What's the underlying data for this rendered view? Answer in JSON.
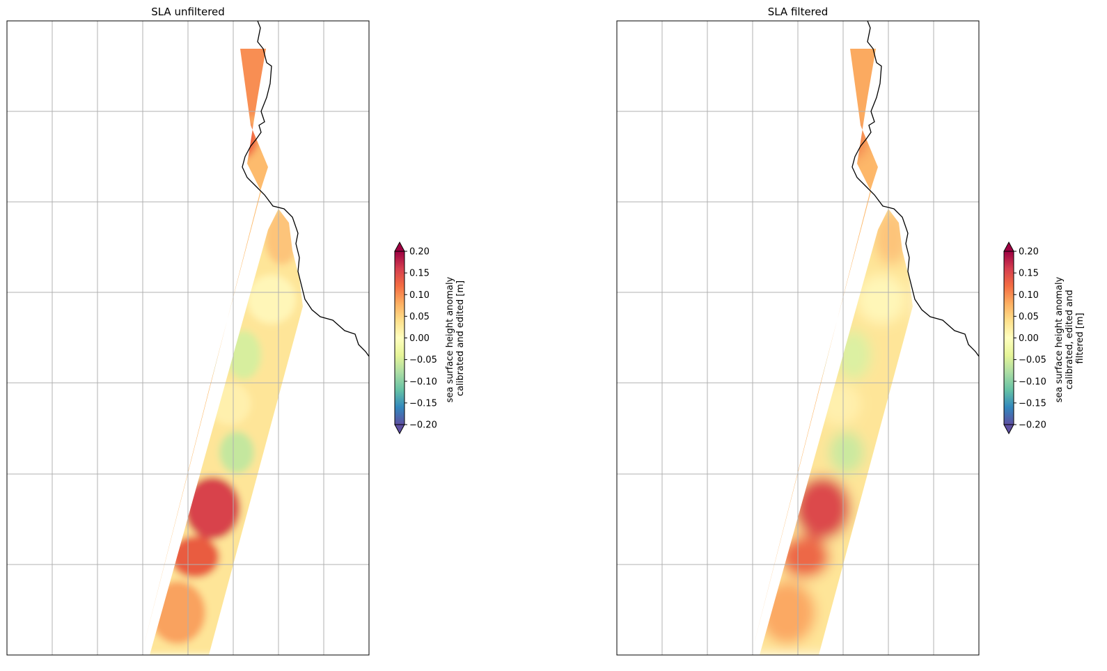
{
  "chart_data": [
    {
      "type": "heatmap",
      "title": "SLA unfiltered",
      "variable": "sea surface height anomaly calibrated and edited [m]",
      "colorbar": {
        "label_lines": [
          "sea surface height anomaly",
          "calibrated and edited [m]"
        ],
        "vmin": -0.2,
        "vmax": 0.2,
        "extend": "both",
        "colormap": "Spectral_r",
        "ticks": [
          -0.2,
          -0.15,
          -0.1,
          -0.05,
          0.0,
          0.05,
          0.1,
          0.15,
          0.2
        ],
        "tick_labels": [
          "−0.20",
          "−0.15",
          "−0.10",
          "−0.05",
          "0.00",
          "0.05",
          "0.10",
          "0.15",
          "0.20"
        ]
      },
      "gridlines": true,
      "coastline": true,
      "swaths": [
        "left",
        "right"
      ],
      "filtered": false
    },
    {
      "type": "heatmap",
      "title": "SLA filtered",
      "variable": "sea surface height anomaly calibrated, edited and filtered [m]",
      "colorbar": {
        "label_lines": [
          "sea surface height anomaly",
          "calibrated, edited and",
          "filtered [m]"
        ],
        "vmin": -0.2,
        "vmax": 0.2,
        "extend": "both",
        "colormap": "Spectral_r",
        "ticks": [
          -0.2,
          -0.15,
          -0.1,
          -0.05,
          0.0,
          0.05,
          0.1,
          0.15,
          0.2
        ],
        "tick_labels": [
          "−0.20",
          "−0.15",
          "−0.10",
          "−0.05",
          "0.00",
          "0.05",
          "0.10",
          "0.15",
          "0.20"
        ]
      },
      "gridlines": true,
      "coastline": true,
      "swaths": [
        "left",
        "right"
      ],
      "filtered": true
    }
  ],
  "colors": {
    "frame": "#000000",
    "grid": "#b0b0b0",
    "coast": "#000000",
    "cmap_stops": [
      "#5e4fa2",
      "#3288bd",
      "#66c2a5",
      "#abdda4",
      "#e6f598",
      "#ffffbf",
      "#fee08b",
      "#fdae61",
      "#f46d43",
      "#d53e4f",
      "#9e0142"
    ]
  }
}
